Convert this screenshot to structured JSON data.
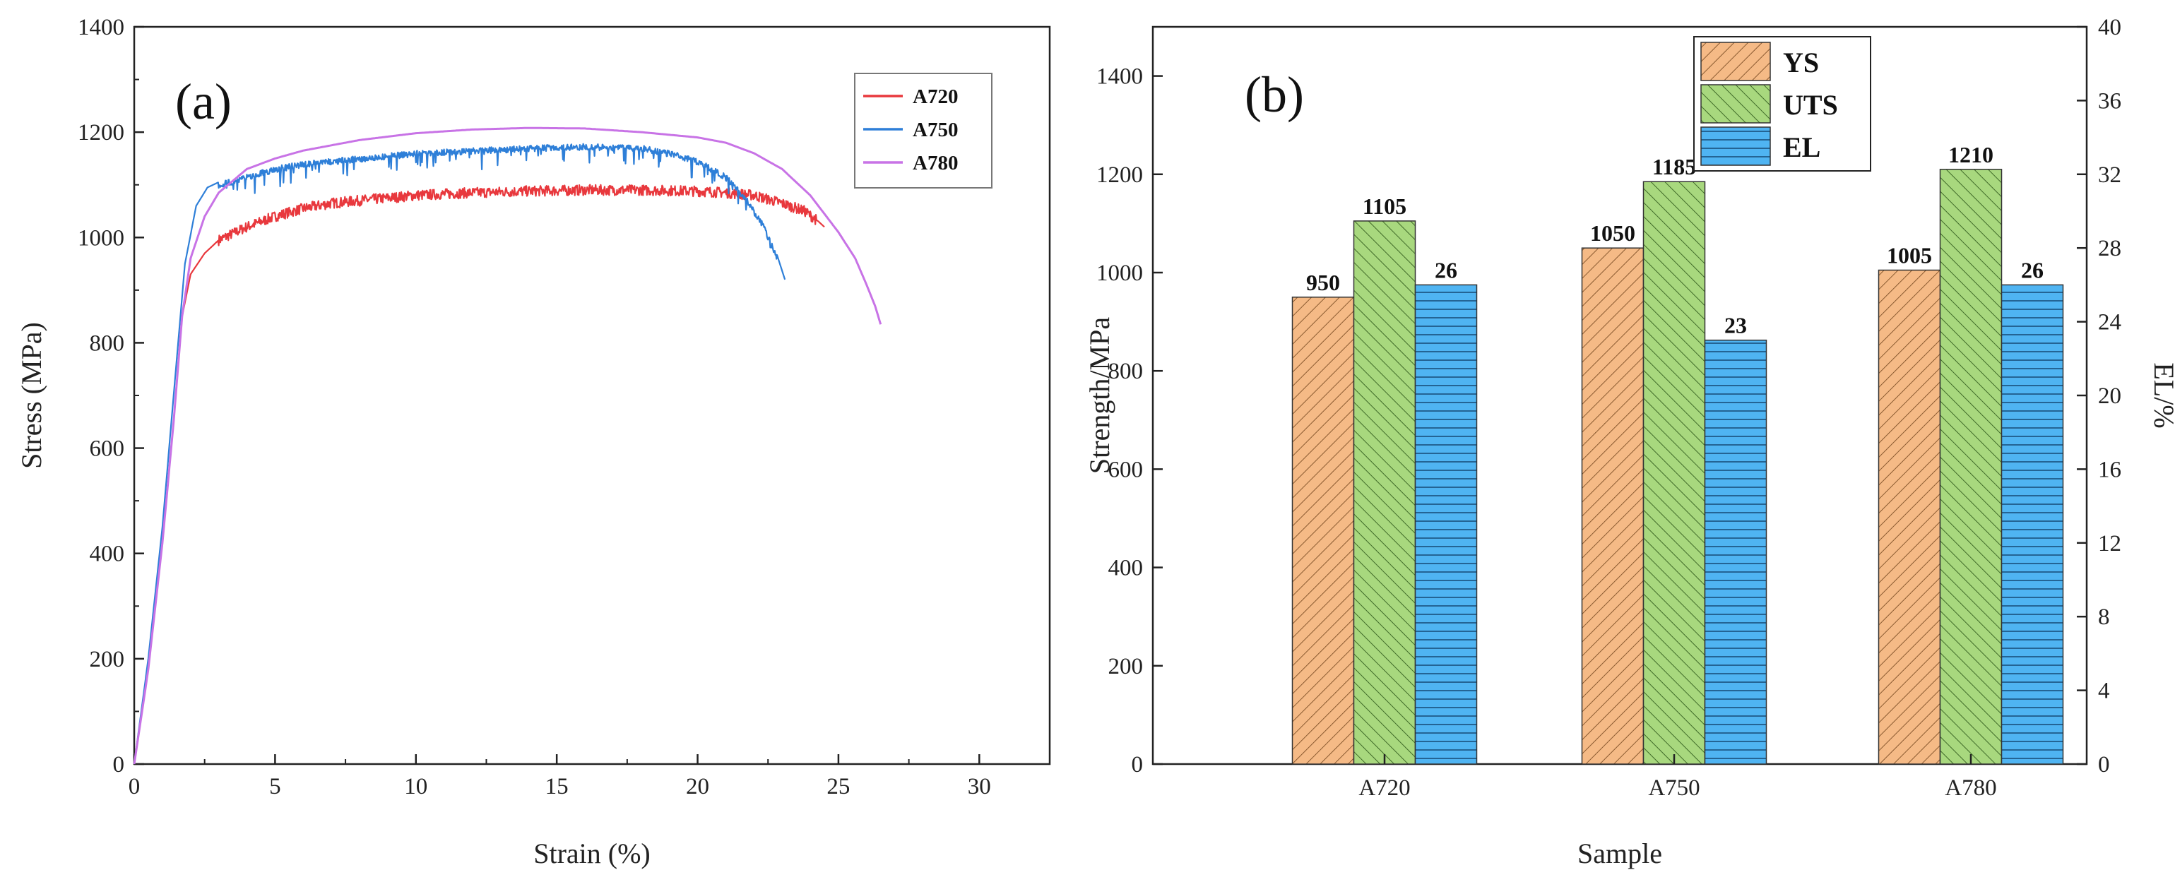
{
  "colors": {
    "A720": "#e8383d",
    "A750": "#2e7fd8",
    "A780": "#c873e6",
    "YS": "#f5ba86",
    "UTS": "#a8d87e",
    "EL": "#4fb4f2",
    "axis": "#222222"
  },
  "chart_data": [
    {
      "type": "line",
      "panel_label": "(a)",
      "xlabel": "Strain (%)",
      "ylabel": "Stress (MPa)",
      "xlim": [
        0,
        32.5
      ],
      "ylim": [
        0,
        1400
      ],
      "xticks": [
        0,
        5,
        10,
        15,
        20,
        25,
        30
      ],
      "yticks": [
        0,
        200,
        400,
        600,
        800,
        1000,
        1200,
        1400
      ],
      "grid": false,
      "legend_position": "top-right",
      "series": [
        {
          "name": "A720",
          "noise": 10,
          "points": [
            [
              0,
              0
            ],
            [
              0.5,
              180
            ],
            [
              1,
              420
            ],
            [
              1.4,
              650
            ],
            [
              1.7,
              850
            ],
            [
              2,
              930
            ],
            [
              2.5,
              970
            ],
            [
              3,
              995
            ],
            [
              4,
              1020
            ],
            [
              5,
              1040
            ],
            [
              6,
              1055
            ],
            [
              7,
              1065
            ],
            [
              8,
              1070
            ],
            [
              9,
              1075
            ],
            [
              10,
              1080
            ],
            [
              12,
              1085
            ],
            [
              14,
              1088
            ],
            [
              16,
              1090
            ],
            [
              18,
              1090
            ],
            [
              20,
              1088
            ],
            [
              21,
              1085
            ],
            [
              22,
              1080
            ],
            [
              23,
              1065
            ],
            [
              23.8,
              1050
            ],
            [
              24.3,
              1030
            ],
            [
              24.5,
              1020
            ]
          ]
        },
        {
          "name": "A750",
          "noise": 12,
          "points": [
            [
              0,
              0
            ],
            [
              0.5,
              200
            ],
            [
              1,
              450
            ],
            [
              1.4,
              700
            ],
            [
              1.8,
              950
            ],
            [
              2.2,
              1060
            ],
            [
              2.6,
              1095
            ],
            [
              3,
              1105
            ],
            [
              4,
              1120
            ],
            [
              5,
              1135
            ],
            [
              6,
              1145
            ],
            [
              8,
              1155
            ],
            [
              10,
              1165
            ],
            [
              12,
              1170
            ],
            [
              14,
              1175
            ],
            [
              16,
              1178
            ],
            [
              18,
              1175
            ],
            [
              19,
              1165
            ],
            [
              20,
              1150
            ],
            [
              21,
              1120
            ],
            [
              21.7,
              1080
            ],
            [
              22.3,
              1030
            ],
            [
              22.8,
              970
            ],
            [
              23.1,
              920
            ]
          ]
        },
        {
          "name": "A780",
          "noise": 0,
          "points": [
            [
              0,
              0
            ],
            [
              0.5,
              180
            ],
            [
              1,
              420
            ],
            [
              1.4,
              650
            ],
            [
              1.7,
              850
            ],
            [
              2,
              960
            ],
            [
              2.5,
              1040
            ],
            [
              3,
              1085
            ],
            [
              4,
              1130
            ],
            [
              5,
              1150
            ],
            [
              6,
              1165
            ],
            [
              8,
              1185
            ],
            [
              10,
              1198
            ],
            [
              12,
              1205
            ],
            [
              14,
              1208
            ],
            [
              16,
              1207
            ],
            [
              18,
              1200
            ],
            [
              20,
              1190
            ],
            [
              21,
              1180
            ],
            [
              22,
              1160
            ],
            [
              23,
              1130
            ],
            [
              24,
              1080
            ],
            [
              25,
              1010
            ],
            [
              25.6,
              960
            ],
            [
              26,
              910
            ],
            [
              26.3,
              870
            ],
            [
              26.5,
              835
            ]
          ]
        }
      ]
    },
    {
      "type": "bar",
      "panel_label": "(b)",
      "xlabel": "Sample",
      "ylabel": "Strength/MPa",
      "y2label": "EL/%",
      "categories": [
        "A720",
        "A750",
        "A780"
      ],
      "ylim": [
        0,
        1500
      ],
      "y2lim": [
        0,
        40
      ],
      "yticks": [
        0,
        200,
        400,
        600,
        800,
        1000,
        1200,
        1400
      ],
      "y2ticks": [
        0,
        4,
        8,
        12,
        16,
        20,
        24,
        28,
        32,
        36,
        40
      ],
      "grid": false,
      "legend_position": "top-center",
      "series": [
        {
          "name": "YS",
          "axis": "left",
          "values": [
            950,
            1050,
            1005
          ],
          "labels": [
            "950",
            "1050",
            "1005"
          ]
        },
        {
          "name": "UTS",
          "axis": "left",
          "values": [
            1105,
            1185,
            1210
          ],
          "labels": [
            "1105",
            "1185",
            "1210"
          ]
        },
        {
          "name": "EL",
          "axis": "right",
          "values": [
            26,
            23,
            26
          ],
          "labels": [
            "26",
            "23",
            "26"
          ]
        }
      ]
    }
  ]
}
